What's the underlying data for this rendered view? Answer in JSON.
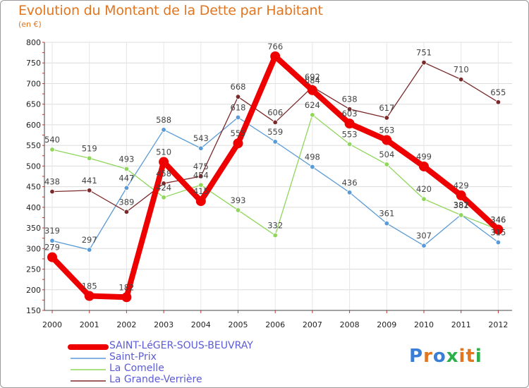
{
  "title": "Evolution du Montant de la Dette par Habitant",
  "subtitle": "(en €)",
  "logo": {
    "text": "Proxiti"
  },
  "chart_data": {
    "type": "line",
    "title": "Evolution du Montant de la Dette par Habitant",
    "ylabel": "(en €)",
    "xlabel": "",
    "x": [
      "2000",
      "2001",
      "2002",
      "2003",
      "2004",
      "2005",
      "2006",
      "2007",
      "2008",
      "2009",
      "2010",
      "2011",
      "2012"
    ],
    "ylim": [
      150,
      800
    ],
    "yticks": [
      150,
      200,
      250,
      300,
      350,
      400,
      450,
      500,
      550,
      600,
      650,
      700,
      750,
      800
    ],
    "grid": "horizontal",
    "legend_position": "bottom",
    "series": [
      {
        "name": "SAINT-LéGER-SOUS-BEUVRAY",
        "color": "#ee0000",
        "values": [
          279,
          185,
          182,
          510,
          415,
          555,
          766,
          684,
          603,
          563,
          499,
          429,
          346
        ]
      },
      {
        "name": "Saint-Prix",
        "color": "#5b9bd5",
        "values": [
          319,
          297,
          447,
          588,
          543,
          618,
          559,
          498,
          436,
          361,
          307,
          382,
          315
        ]
      },
      {
        "name": "La Comelle",
        "color": "#8fd65a",
        "values": [
          540,
          519,
          493,
          424,
          454,
          393,
          332,
          624,
          553,
          504,
          420,
          381,
          346
        ]
      },
      {
        "name": "La Grande-Verrière",
        "color": "#7a2a2a",
        "values": [
          438,
          441,
          389,
          458,
          475,
          668,
          606,
          692,
          638,
          617,
          751,
          710,
          655
        ]
      }
    ]
  }
}
